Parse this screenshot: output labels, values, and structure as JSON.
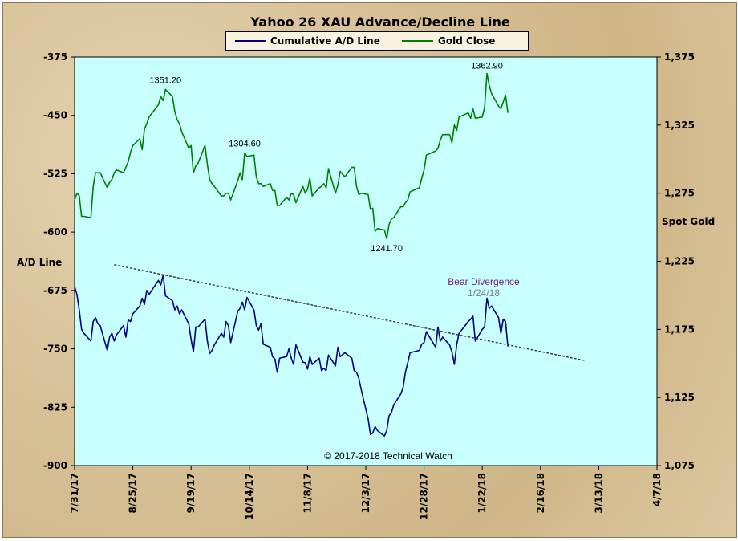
{
  "chart_data": {
    "type": "line",
    "title": "Yahoo 26 XAU Advance/Decline  Line",
    "ylabel_left": "A/D Line",
    "ylabel_right": "Spot Gold",
    "ylim_left": [
      -900,
      -375
    ],
    "ylim_right": [
      1075,
      1375
    ],
    "y_ticks_left": [
      "-375",
      "-450",
      "-525",
      "-600",
      "-675",
      "-750",
      "-825",
      "-900"
    ],
    "y_ticks_right": [
      "1,375",
      "1,325",
      "1,275",
      "1,225",
      "1,175",
      "1,125",
      "1,075"
    ],
    "x_ticks": [
      "7/31/17",
      "8/25/17",
      "9/19/17",
      "10/14/17",
      "11/8/17",
      "12/3/17",
      "12/28/17",
      "1/22/18",
      "2/16/18",
      "3/13/18",
      "4/7/18"
    ],
    "grid": false,
    "legend_position": "top-center",
    "series": [
      {
        "name": "Cumulative A/D Line",
        "axis": "left",
        "color": "#000080",
        "points": [
          [
            "2017-07-31",
            -670
          ],
          [
            "2017-08-01",
            -680
          ],
          [
            "2017-08-02",
            -700
          ],
          [
            "2017-08-03",
            -725
          ],
          [
            "2017-08-04",
            -730
          ],
          [
            "2017-08-07",
            -740
          ],
          [
            "2017-08-08",
            -715
          ],
          [
            "2017-08-09",
            -710
          ],
          [
            "2017-08-10",
            -718
          ],
          [
            "2017-08-11",
            -720
          ],
          [
            "2017-08-14",
            -752
          ],
          [
            "2017-08-15",
            -735
          ],
          [
            "2017-08-16",
            -730
          ],
          [
            "2017-08-17",
            -740
          ],
          [
            "2017-08-18",
            -732
          ],
          [
            "2017-08-21",
            -720
          ],
          [
            "2017-08-22",
            -735
          ],
          [
            "2017-08-23",
            -713
          ],
          [
            "2017-08-24",
            -715
          ],
          [
            "2017-08-25",
            -705
          ],
          [
            "2017-08-28",
            -695
          ],
          [
            "2017-08-29",
            -685
          ],
          [
            "2017-08-30",
            -693
          ],
          [
            "2017-08-31",
            -675
          ],
          [
            "2017-09-01",
            -680
          ],
          [
            "2017-09-05",
            -662
          ],
          [
            "2017-09-06",
            -668
          ],
          [
            "2017-09-07",
            -655
          ],
          [
            "2017-09-08",
            -682
          ],
          [
            "2017-09-11",
            -688
          ],
          [
            "2017-09-12",
            -700
          ],
          [
            "2017-09-13",
            -695
          ],
          [
            "2017-09-14",
            -705
          ],
          [
            "2017-09-15",
            -700
          ],
          [
            "2017-09-18",
            -718
          ],
          [
            "2017-09-19",
            -738
          ],
          [
            "2017-09-20",
            -754
          ],
          [
            "2017-09-21",
            -722
          ],
          [
            "2017-09-22",
            -722
          ],
          [
            "2017-09-25",
            -712
          ],
          [
            "2017-09-26",
            -740
          ],
          [
            "2017-09-27",
            -756
          ],
          [
            "2017-09-28",
            -752
          ],
          [
            "2017-09-29",
            -745
          ],
          [
            "2017-10-02",
            -730
          ],
          [
            "2017-10-03",
            -735
          ],
          [
            "2017-10-04",
            -715
          ],
          [
            "2017-10-05",
            -720
          ],
          [
            "2017-10-06",
            -742
          ],
          [
            "2017-10-09",
            -702
          ],
          [
            "2017-10-10",
            -698
          ],
          [
            "2017-10-11",
            -690
          ],
          [
            "2017-10-12",
            -700
          ],
          [
            "2017-10-13",
            -684
          ],
          [
            "2017-10-16",
            -700
          ],
          [
            "2017-10-17",
            -720
          ],
          [
            "2017-10-18",
            -726
          ],
          [
            "2017-10-19",
            -718
          ],
          [
            "2017-10-20",
            -744
          ],
          [
            "2017-10-23",
            -748
          ],
          [
            "2017-10-24",
            -760
          ],
          [
            "2017-10-25",
            -763
          ],
          [
            "2017-10-26",
            -780
          ],
          [
            "2017-10-27",
            -762
          ],
          [
            "2017-10-30",
            -760
          ],
          [
            "2017-10-31",
            -750
          ],
          [
            "2017-11-01",
            -762
          ],
          [
            "2017-11-02",
            -770
          ],
          [
            "2017-11-03",
            -745
          ],
          [
            "2017-11-06",
            -767
          ],
          [
            "2017-11-07",
            -768
          ],
          [
            "2017-11-08",
            -776
          ],
          [
            "2017-11-09",
            -760
          ],
          [
            "2017-11-10",
            -770
          ],
          [
            "2017-11-13",
            -762
          ],
          [
            "2017-11-14",
            -778
          ],
          [
            "2017-11-15",
            -775
          ],
          [
            "2017-11-16",
            -778
          ],
          [
            "2017-11-17",
            -758
          ],
          [
            "2017-11-20",
            -772
          ],
          [
            "2017-11-21",
            -748
          ],
          [
            "2017-11-22",
            -760
          ],
          [
            "2017-11-24",
            -755
          ],
          [
            "2017-11-27",
            -762
          ],
          [
            "2017-11-28",
            -778
          ],
          [
            "2017-11-29",
            -780
          ],
          [
            "2017-11-30",
            -788
          ],
          [
            "2017-12-01",
            -802
          ],
          [
            "2017-12-04",
            -840
          ],
          [
            "2017-12-05",
            -860
          ],
          [
            "2017-12-06",
            -858
          ],
          [
            "2017-12-07",
            -850
          ],
          [
            "2017-12-08",
            -855
          ],
          [
            "2017-12-11",
            -862
          ],
          [
            "2017-12-12",
            -855
          ],
          [
            "2017-12-13",
            -836
          ],
          [
            "2017-12-14",
            -832
          ],
          [
            "2017-12-15",
            -822
          ],
          [
            "2017-12-18",
            -808
          ],
          [
            "2017-12-19",
            -800
          ],
          [
            "2017-12-20",
            -780
          ],
          [
            "2017-12-21",
            -768
          ],
          [
            "2017-12-22",
            -755
          ],
          [
            "2017-12-26",
            -752
          ],
          [
            "2017-12-27",
            -744
          ],
          [
            "2017-12-28",
            -742
          ],
          [
            "2017-12-29",
            -728
          ],
          [
            "2018-01-02",
            -748
          ],
          [
            "2018-01-03",
            -722
          ],
          [
            "2018-01-04",
            -740
          ],
          [
            "2018-01-05",
            -735
          ],
          [
            "2018-01-08",
            -745
          ],
          [
            "2018-01-09",
            -754
          ],
          [
            "2018-01-10",
            -770
          ],
          [
            "2018-01-11",
            -745
          ],
          [
            "2018-01-12",
            -730
          ],
          [
            "2018-01-16",
            -715
          ],
          [
            "2018-01-17",
            -712
          ],
          [
            "2018-01-18",
            -708
          ],
          [
            "2018-01-19",
            -740
          ],
          [
            "2018-01-22",
            -725
          ],
          [
            "2018-01-23",
            -722
          ],
          [
            "2018-01-24",
            -685
          ],
          [
            "2018-01-25",
            -698
          ],
          [
            "2018-01-26",
            -695
          ],
          [
            "2018-01-29",
            -710
          ],
          [
            "2018-01-30",
            -730
          ],
          [
            "2018-01-31",
            -712
          ],
          [
            "2018-02-01",
            -715
          ],
          [
            "2018-02-02",
            -747
          ]
        ]
      },
      {
        "name": "Gold Close",
        "axis": "right",
        "color": "#008000",
        "points": [
          [
            "2017-07-31",
            1270
          ],
          [
            "2017-08-01",
            1275
          ],
          [
            "2017-08-02",
            1273
          ],
          [
            "2017-08-03",
            1258
          ],
          [
            "2017-08-04",
            1258
          ],
          [
            "2017-08-07",
            1257
          ],
          [
            "2017-08-08",
            1280
          ],
          [
            "2017-08-09",
            1290
          ],
          [
            "2017-08-10",
            1290
          ],
          [
            "2017-08-11",
            1290
          ],
          [
            "2017-08-14",
            1279
          ],
          [
            "2017-08-15",
            1283
          ],
          [
            "2017-08-16",
            1285
          ],
          [
            "2017-08-17",
            1290
          ],
          [
            "2017-08-18",
            1292
          ],
          [
            "2017-08-21",
            1290
          ],
          [
            "2017-08-22",
            1294
          ],
          [
            "2017-08-23",
            1298
          ],
          [
            "2017-08-24",
            1305
          ],
          [
            "2017-08-25",
            1310
          ],
          [
            "2017-08-28",
            1315
          ],
          [
            "2017-08-29",
            1307
          ],
          [
            "2017-08-30",
            1322
          ],
          [
            "2017-08-31",
            1326
          ],
          [
            "2017-09-01",
            1331
          ],
          [
            "2017-09-05",
            1340
          ],
          [
            "2017-09-06",
            1346
          ],
          [
            "2017-09-07",
            1343
          ],
          [
            "2017-09-08",
            1351.2
          ],
          [
            "2017-09-11",
            1346
          ],
          [
            "2017-09-12",
            1335
          ],
          [
            "2017-09-13",
            1329
          ],
          [
            "2017-09-14",
            1326
          ],
          [
            "2017-09-15",
            1320
          ],
          [
            "2017-09-18",
            1308
          ],
          [
            "2017-09-19",
            1310
          ],
          [
            "2017-09-20",
            1290
          ],
          [
            "2017-09-21",
            1295
          ],
          [
            "2017-09-22",
            1297
          ],
          [
            "2017-09-25",
            1310
          ],
          [
            "2017-09-26",
            1296
          ],
          [
            "2017-09-27",
            1285
          ],
          [
            "2017-09-28",
            1282
          ],
          [
            "2017-09-29",
            1280
          ],
          [
            "2017-10-02",
            1273
          ],
          [
            "2017-10-03",
            1273
          ],
          [
            "2017-10-04",
            1275
          ],
          [
            "2017-10-05",
            1275
          ],
          [
            "2017-10-06",
            1270
          ],
          [
            "2017-10-09",
            1284
          ],
          [
            "2017-10-10",
            1290
          ],
          [
            "2017-10-11",
            1285
          ],
          [
            "2017-10-12",
            1304.6
          ],
          [
            "2017-10-13",
            1302
          ],
          [
            "2017-10-16",
            1303
          ],
          [
            "2017-10-17",
            1287
          ],
          [
            "2017-10-18",
            1282
          ],
          [
            "2017-10-19",
            1282
          ],
          [
            "2017-10-20",
            1280
          ],
          [
            "2017-10-23",
            1282
          ],
          [
            "2017-10-24",
            1277
          ],
          [
            "2017-10-25",
            1277
          ],
          [
            "2017-10-26",
            1266
          ],
          [
            "2017-10-27",
            1266
          ],
          [
            "2017-10-30",
            1272
          ],
          [
            "2017-10-31",
            1270
          ],
          [
            "2017-11-01",
            1275
          ],
          [
            "2017-11-02",
            1274
          ],
          [
            "2017-11-03",
            1268
          ],
          [
            "2017-11-06",
            1280
          ],
          [
            "2017-11-07",
            1275
          ],
          [
            "2017-11-08",
            1278
          ],
          [
            "2017-11-09",
            1286
          ],
          [
            "2017-11-10",
            1273
          ],
          [
            "2017-11-13",
            1279
          ],
          [
            "2017-11-14",
            1280
          ],
          [
            "2017-11-15",
            1282
          ],
          [
            "2017-11-16",
            1279
          ],
          [
            "2017-11-17",
            1293
          ],
          [
            "2017-11-20",
            1275
          ],
          [
            "2017-11-21",
            1281
          ],
          [
            "2017-11-22",
            1291
          ],
          [
            "2017-11-24",
            1287
          ],
          [
            "2017-11-27",
            1294
          ],
          [
            "2017-11-28",
            1294
          ],
          [
            "2017-11-29",
            1280
          ],
          [
            "2017-11-30",
            1274
          ],
          [
            "2017-12-01",
            1275
          ],
          [
            "2017-12-04",
            1274
          ],
          [
            "2017-12-05",
            1263
          ],
          [
            "2017-12-06",
            1264
          ],
          [
            "2017-12-07",
            1247
          ],
          [
            "2017-12-08",
            1249
          ],
          [
            "2017-12-11",
            1248
          ],
          [
            "2017-12-12",
            1241.7
          ],
          [
            "2017-12-13",
            1252
          ],
          [
            "2017-12-14",
            1256
          ],
          [
            "2017-12-15",
            1257
          ],
          [
            "2017-12-18",
            1265
          ],
          [
            "2017-12-19",
            1265
          ],
          [
            "2017-12-20",
            1268
          ],
          [
            "2017-12-21",
            1270
          ],
          [
            "2017-12-22",
            1276
          ],
          [
            "2017-12-26",
            1279
          ],
          [
            "2017-12-27",
            1286
          ],
          [
            "2017-12-28",
            1292
          ],
          [
            "2017-12-29",
            1303
          ],
          [
            "2018-01-02",
            1306
          ],
          [
            "2018-01-03",
            1308
          ],
          [
            "2018-01-04",
            1314
          ],
          [
            "2018-01-05",
            1318
          ],
          [
            "2018-01-08",
            1318
          ],
          [
            "2018-01-09",
            1312
          ],
          [
            "2018-01-10",
            1325
          ],
          [
            "2018-01-11",
            1321
          ],
          [
            "2018-01-12",
            1331
          ],
          [
            "2018-01-16",
            1334
          ],
          [
            "2018-01-17",
            1330
          ],
          [
            "2018-01-18",
            1337
          ],
          [
            "2018-01-19",
            1330
          ],
          [
            "2018-01-22",
            1331
          ],
          [
            "2018-01-23",
            1338
          ],
          [
            "2018-01-24",
            1362.9
          ],
          [
            "2018-01-25",
            1354
          ],
          [
            "2018-01-26",
            1348
          ],
          [
            "2018-01-29",
            1339
          ],
          [
            "2018-01-30",
            1337
          ],
          [
            "2018-01-31",
            1342
          ],
          [
            "2018-02-01",
            1347
          ],
          [
            "2018-02-02",
            1334
          ]
        ]
      }
    ],
    "trendline": {
      "axis": "left",
      "start": [
        "2017-08-17",
        -642
      ],
      "end": [
        "2018-03-07",
        -765
      ],
      "style": "dashed",
      "color": "#333333"
    },
    "annotations": {
      "gold_high_1": {
        "text": "1351.20",
        "date": "2017-09-08",
        "value": 1351.2
      },
      "gold_high_2": {
        "text": "1304.60",
        "date": "2017-10-12",
        "value": 1304.6
      },
      "gold_low": {
        "text": "1241.70",
        "date": "2017-12-12",
        "value": 1241.7
      },
      "gold_high_3": {
        "text": "1362.90",
        "date": "2018-01-24",
        "value": 1362.9
      },
      "bear_divergence": {
        "text": "Bear Divergence",
        "date_text": "1/24/18"
      }
    },
    "copyright": "© 2017-2018 Technical Watch"
  }
}
